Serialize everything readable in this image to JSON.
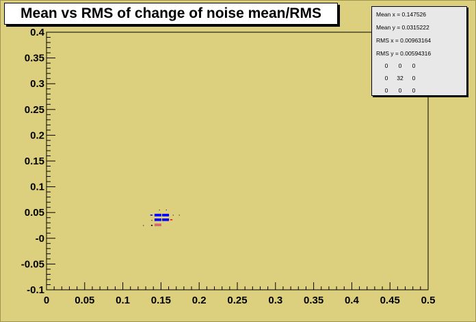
{
  "chart_data": {
    "type": "heatmap",
    "title": "Mean vs RMS of change of noise mean/RMS",
    "xlabel": "",
    "ylabel": "",
    "xlim": [
      0,
      0.5
    ],
    "ylim": [
      -0.1,
      0.4
    ],
    "x_ticks": [
      "0",
      "0.05",
      "0.1",
      "0.15",
      "0.2",
      "0.25",
      "0.3",
      "0.35",
      "0.4",
      "0.45",
      "0.5"
    ],
    "y_ticks": [
      "-0.1",
      "-0.05",
      "-0",
      "0.05",
      "0.1",
      "0.15",
      "0.2",
      "0.25",
      "0.3",
      "0.35",
      "0.4"
    ],
    "grid": false,
    "cells": [
      {
        "x": 0.146,
        "y": 0.045,
        "w": 0.009,
        "h": 0.005,
        "level": "high"
      },
      {
        "x": 0.156,
        "y": 0.045,
        "w": 0.009,
        "h": 0.005,
        "level": "high"
      },
      {
        "x": 0.146,
        "y": 0.036,
        "w": 0.009,
        "h": 0.005,
        "level": "high"
      },
      {
        "x": 0.156,
        "y": 0.036,
        "w": 0.009,
        "h": 0.005,
        "level": "high"
      },
      {
        "x": 0.1375,
        "y": 0.045,
        "w": 0.003,
        "h": 0.002,
        "level": "high"
      },
      {
        "x": 0.1635,
        "y": 0.036,
        "w": 0.003,
        "h": 0.002,
        "level": "red"
      },
      {
        "x": 0.146,
        "y": 0.026,
        "w": 0.009,
        "h": 0.005,
        "level": "low"
      },
      {
        "x": 0.138,
        "y": 0.025,
        "w": 0.002,
        "h": 0.002,
        "level": "dot"
      },
      {
        "x": 0.127,
        "y": 0.025,
        "w": 0.001,
        "h": 0.001,
        "level": "dot"
      },
      {
        "x": 0.148,
        "y": 0.055,
        "w": 0.001,
        "h": 0.001,
        "level": "dot"
      },
      {
        "x": 0.157,
        "y": 0.055,
        "w": 0.001,
        "h": 0.001,
        "level": "dot"
      },
      {
        "x": 0.166,
        "y": 0.045,
        "w": 0.001,
        "h": 0.001,
        "level": "dot"
      },
      {
        "x": 0.174,
        "y": 0.045,
        "w": 0.001,
        "h": 0.001,
        "level": "dot"
      },
      {
        "x": 0.138,
        "y": 0.035,
        "w": 0.001,
        "h": 0.001,
        "level": "dot"
      }
    ],
    "colors": {
      "frame_bg": "#dccf7d",
      "high": "#0000ff",
      "red": "#ff0000",
      "low": "#d16a6a",
      "dot": "#000000"
    }
  },
  "stats": {
    "entries": [
      {
        "label": "Mean x = 0.147526"
      },
      {
        "label": "Mean y = 0.0315222"
      },
      {
        "label": "RMS x = 0.00963164"
      },
      {
        "label": "RMS y = 0.00594316"
      }
    ],
    "overflow": [
      [
        "0",
        "0",
        "0"
      ],
      [
        "0",
        "32",
        "0"
      ],
      [
        "0",
        "0",
        "0"
      ]
    ]
  }
}
